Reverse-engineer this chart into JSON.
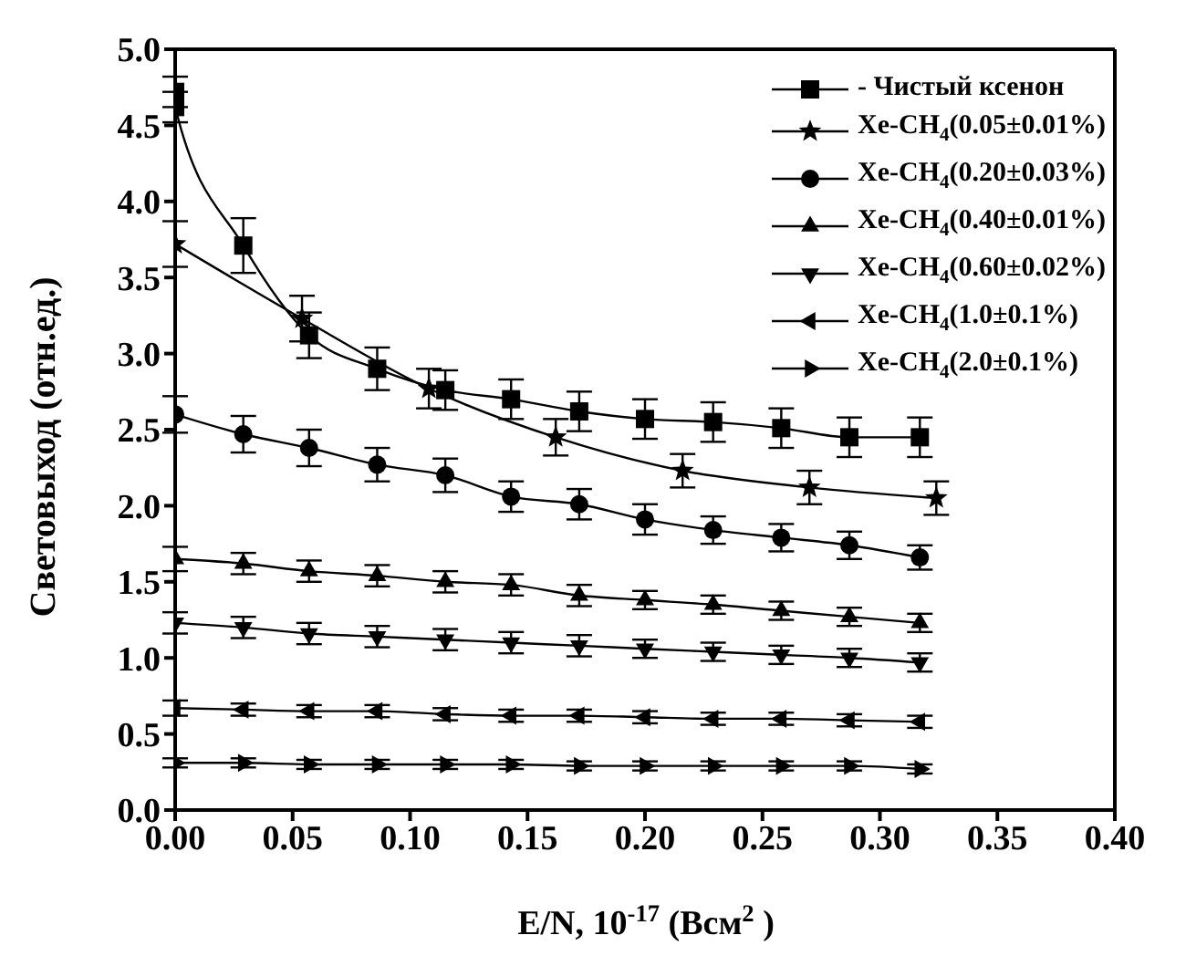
{
  "chart_data": {
    "type": "line",
    "xlabel": "E/N, 10$^{-17}$(Всм$^{2}$)",
    "ylabel": "Световыход (отн.ед.)",
    "xlim": [
      0,
      0.4
    ],
    "xticks": [
      {
        "value": 0,
        "label": "0.00"
      },
      {
        "value": 0.05,
        "label": "0.05"
      },
      {
        "value": 0.1,
        "label": "0.10"
      },
      {
        "value": 0.15,
        "label": "0.15"
      },
      {
        "value": 0.2,
        "label": "0.20"
      },
      {
        "value": 0.25,
        "label": "0.25"
      },
      {
        "value": 0.3,
        "label": "0.30"
      },
      {
        "value": 0.35,
        "label": "0.35"
      },
      {
        "value": 0.4,
        "label": "0.40"
      }
    ],
    "ylim": [
      0,
      5
    ],
    "yticks": [
      {
        "value": 0,
        "label": "0.0"
      },
      {
        "value": 0.5,
        "label": "0.5"
      },
      {
        "value": 1,
        "label": "1.0"
      },
      {
        "value": 1.5,
        "label": "1.5"
      },
      {
        "value": 2,
        "label": "2.0"
      },
      {
        "value": 2.5,
        "label": "2.5"
      },
      {
        "value": 3,
        "label": "3.0"
      },
      {
        "value": 3.5,
        "label": "3.5"
      },
      {
        "value": 4,
        "label": "4.0"
      },
      {
        "value": 4.5,
        "label": "4.5"
      },
      {
        "value": 5,
        "label": "5.0"
      }
    ],
    "legend": "top right",
    "grid": false,
    "line_style": "solid",
    "series": [
      {
        "name": "- Чистый ксенон",
        "color": "#000000",
        "marker": "square",
        "x": [
          0,
          0,
          0.029,
          0.057,
          0.086,
          0.115,
          0.143,
          0.172,
          0.2,
          0.229,
          0.258,
          0.287,
          0.317
        ],
        "values": [
          4.72,
          4.62,
          3.71,
          3.12,
          2.9,
          2.76,
          2.7,
          2.62,
          2.57,
          2.55,
          2.51,
          2.45,
          2.45
        ],
        "errors": [
          0.1,
          0.1,
          0.18,
          0.15,
          0.14,
          0.13,
          0.13,
          0.13,
          0.13,
          0.13,
          0.13,
          0.13,
          0.13
        ]
      },
      {
        "name": "Xe-CH$_{4}$(0.05±0.01%)",
        "color": "#000000",
        "marker": "star",
        "x": [
          0,
          0.054,
          0.108,
          0.162,
          0.216,
          0.27,
          0.324
        ],
        "values": [
          3.72,
          3.23,
          2.77,
          2.45,
          2.23,
          2.12,
          2.05
        ],
        "errors": [
          0.15,
          0.15,
          0.13,
          0.12,
          0.11,
          0.11,
          0.11
        ]
      },
      {
        "name": "Xe-CH$_{4}$(0.20±0.03%)",
        "color": "#000000",
        "marker": "circle",
        "x": [
          0,
          0.029,
          0.057,
          0.086,
          0.115,
          0.143,
          0.172,
          0.2,
          0.229,
          0.258,
          0.287,
          0.317
        ],
        "values": [
          2.6,
          2.47,
          2.38,
          2.27,
          2.2,
          2.06,
          2.01,
          1.91,
          1.84,
          1.79,
          1.74,
          1.66
        ],
        "errors": [
          0.12,
          0.12,
          0.12,
          0.11,
          0.11,
          0.1,
          0.1,
          0.1,
          0.09,
          0.09,
          0.09,
          0.08
        ]
      },
      {
        "name": "Xe-CH$_{4}$(0.40±0.01%)",
        "color": "#000000",
        "marker": "triangle",
        "x": [
          0,
          0.029,
          0.057,
          0.086,
          0.115,
          0.143,
          0.172,
          0.2,
          0.229,
          0.258,
          0.287,
          0.317
        ],
        "values": [
          1.65,
          1.62,
          1.57,
          1.54,
          1.5,
          1.48,
          1.41,
          1.38,
          1.35,
          1.31,
          1.27,
          1.23
        ],
        "errors": [
          0.08,
          0.07,
          0.07,
          0.07,
          0.07,
          0.07,
          0.07,
          0.06,
          0.06,
          0.06,
          0.06,
          0.06
        ]
      },
      {
        "name": "Xe-CH$_{4}$(0.60±0.02%)",
        "color": "#000000",
        "marker": "triangle-down",
        "x": [
          0,
          0.029,
          0.057,
          0.086,
          0.115,
          0.143,
          0.172,
          0.2,
          0.229,
          0.258,
          0.287,
          0.317
        ],
        "values": [
          1.23,
          1.2,
          1.16,
          1.14,
          1.12,
          1.1,
          1.08,
          1.06,
          1.04,
          1.02,
          1.0,
          0.97
        ],
        "errors": [
          0.07,
          0.07,
          0.07,
          0.07,
          0.07,
          0.07,
          0.07,
          0.06,
          0.06,
          0.06,
          0.06,
          0.06
        ]
      },
      {
        "name": "Xe-CH$_{4}$(1.0±0.1%)",
        "color": "#000000",
        "marker": "triangle-left",
        "x": [
          0,
          0.029,
          0.057,
          0.086,
          0.115,
          0.143,
          0.172,
          0.2,
          0.229,
          0.258,
          0.287,
          0.317
        ],
        "values": [
          0.67,
          0.66,
          0.65,
          0.65,
          0.63,
          0.62,
          0.62,
          0.61,
          0.6,
          0.6,
          0.59,
          0.58
        ],
        "errors": [
          0.05,
          0.04,
          0.04,
          0.04,
          0.04,
          0.04,
          0.04,
          0.04,
          0.04,
          0.04,
          0.04,
          0.04
        ]
      },
      {
        "name": "Xe-CH$_{4}$(2.0±0.1%)",
        "color": "#000000",
        "marker": "triangle-right",
        "x": [
          0,
          0.029,
          0.057,
          0.086,
          0.115,
          0.143,
          0.172,
          0.2,
          0.229,
          0.258,
          0.287,
          0.317
        ],
        "values": [
          0.31,
          0.31,
          0.3,
          0.3,
          0.3,
          0.3,
          0.29,
          0.29,
          0.29,
          0.29,
          0.29,
          0.27
        ],
        "errors": [
          0.03,
          0.03,
          0.03,
          0.03,
          0.03,
          0.03,
          0.03,
          0.03,
          0.03,
          0.03,
          0.03,
          0.03
        ]
      }
    ]
  }
}
